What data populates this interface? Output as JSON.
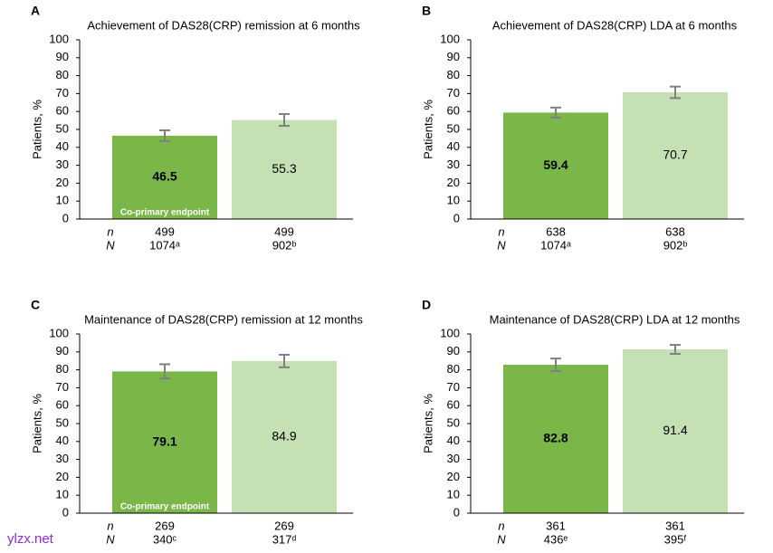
{
  "chart_data": [
    {
      "type": "bar",
      "panel": "A",
      "title": "Achievement of DAS28(CRP) remission at 6 months",
      "ylabel": "Patients, %",
      "categories": [
        null,
        null
      ],
      "values": [
        46.5,
        55.3
      ],
      "errors": [
        3,
        3.3
      ],
      "colors": [
        "#7ab648",
        "#c5e0b3"
      ],
      "annotation": "Co-primary endpoint",
      "ylim": [
        0,
        100
      ],
      "yticks": [
        0,
        10,
        20,
        30,
        40,
        50,
        60,
        70,
        80,
        90,
        100
      ],
      "n_label": "n",
      "n": [
        499,
        499
      ],
      "N_label": "N",
      "N": [
        "1074ᵃ",
        "902ᵇ"
      ]
    },
    {
      "type": "bar",
      "panel": "B",
      "title": "Achievement of DAS28(CRP) LDA at 6 months",
      "ylabel": "Patients, %",
      "categories": [
        null,
        null
      ],
      "values": [
        59.4,
        70.7
      ],
      "errors": [
        2.8,
        3.2
      ],
      "colors": [
        "#7ab648",
        "#c5e0b3"
      ],
      "ylim": [
        0,
        100
      ],
      "yticks": [
        0,
        10,
        20,
        30,
        40,
        50,
        60,
        70,
        80,
        90,
        100
      ],
      "n_label": "n",
      "n": [
        638,
        638
      ],
      "N_label": "N",
      "N": [
        "1074ᵃ",
        "902ᵇ"
      ]
    },
    {
      "type": "bar",
      "panel": "C",
      "title": "Maintenance of DAS28(CRP) remission at 12 months",
      "ylabel": "Patients, %",
      "categories": [
        null,
        null
      ],
      "values": [
        79.1,
        84.9
      ],
      "errors": [
        4,
        3.5
      ],
      "colors": [
        "#7ab648",
        "#c5e0b3"
      ],
      "annotation": "Co-primary endpoint",
      "ylim": [
        0,
        100
      ],
      "yticks": [
        0,
        10,
        20,
        30,
        40,
        50,
        60,
        70,
        80,
        90,
        100
      ],
      "n_label": "n",
      "n": [
        269,
        269
      ],
      "N_label": "N",
      "N": [
        "340ᶜ",
        "317ᵈ"
      ]
    },
    {
      "type": "bar",
      "panel": "D",
      "title": "Maintenance of DAS28(CRP) LDA at 12 months",
      "ylabel": "Patients, %",
      "categories": [
        null,
        null
      ],
      "values": [
        82.8,
        91.4
      ],
      "errors": [
        3.5,
        2.5
      ],
      "colors": [
        "#7ab648",
        "#c5e0b3"
      ],
      "ylim": [
        0,
        100
      ],
      "yticks": [
        0,
        10,
        20,
        30,
        40,
        50,
        60,
        70,
        80,
        90,
        100
      ],
      "n_label": "n",
      "n": [
        361,
        361
      ],
      "N_label": "N",
      "N": [
        "436ᵉ",
        "395ᶠ"
      ]
    }
  ],
  "watermark": "ylzx.net"
}
